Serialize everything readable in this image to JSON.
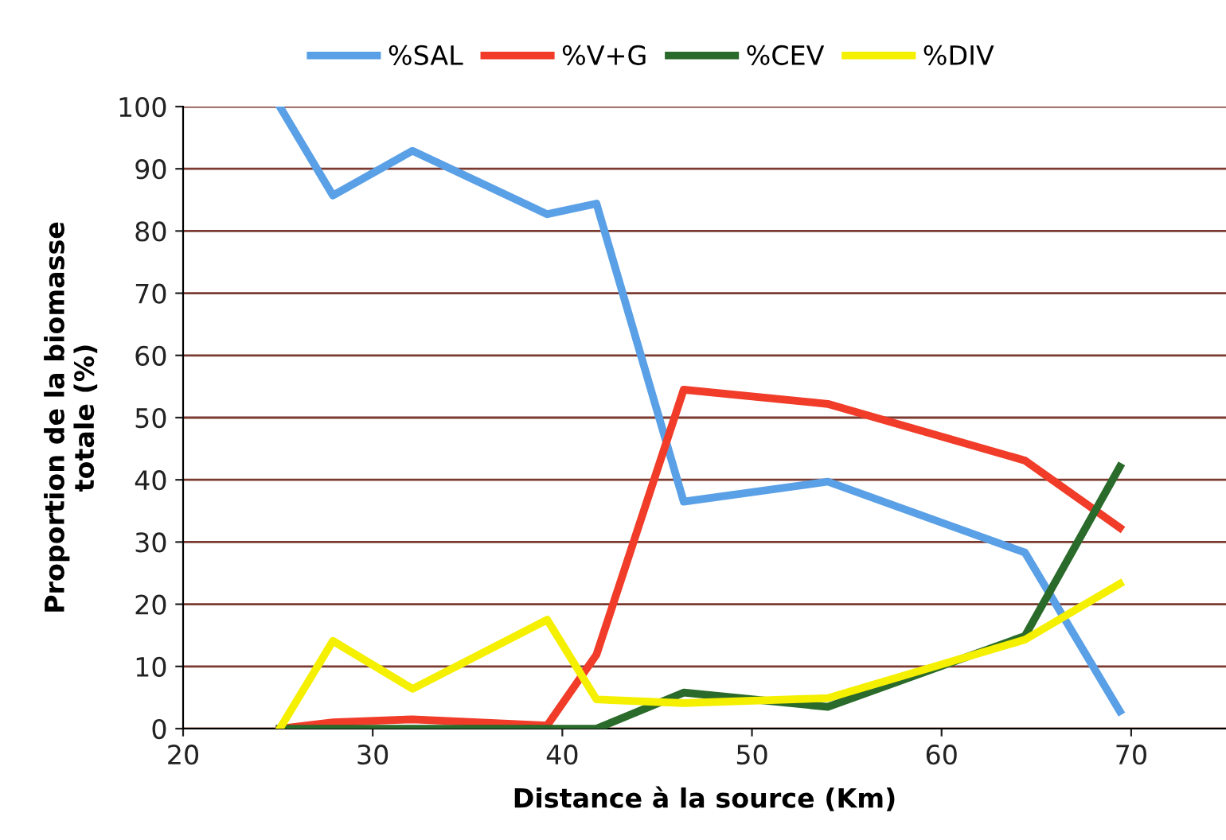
{
  "chart_data": {
    "type": "line",
    "xlabel": "Distance à la source (Km)",
    "ylabel": "Proportion de la biomasse\ntotale (%)",
    "x": [
      25.1,
      27.9,
      32.1,
      39.2,
      41.8,
      46.4,
      54.0,
      64.4,
      69.4
    ],
    "series": [
      {
        "name": "%SAL",
        "color": "#5aa0e6",
        "values": [
          100,
          85.7,
          92.9,
          82.7,
          84.4,
          36.5,
          39.7,
          28.3,
          2.8
        ]
      },
      {
        "name": "%V+G",
        "color": "#f03c28",
        "values": [
          0,
          1,
          1.5,
          0.5,
          11.9,
          54.5,
          52.2,
          43.1,
          32.3
        ]
      },
      {
        "name": "%CEV",
        "color": "#2a6a2a",
        "values": [
          0,
          0,
          0,
          0,
          0,
          5.8,
          3.5,
          14.9,
          42.1
        ]
      },
      {
        "name": "%DIV",
        "color": "#f5f000",
        "values": [
          0,
          14.1,
          6.4,
          17.5,
          4.7,
          4.1,
          4.9,
          14.3,
          23.3
        ]
      }
    ],
    "xlim": [
      20,
      75
    ],
    "xticks": [
      20,
      30,
      40,
      50,
      60,
      70
    ],
    "ylim": [
      0,
      100
    ],
    "yticks": [
      0,
      10,
      20,
      30,
      40,
      50,
      60,
      70,
      80,
      90,
      100
    ],
    "grid": "y",
    "legend": "top",
    "marker": "none",
    "line_style": "solid"
  }
}
